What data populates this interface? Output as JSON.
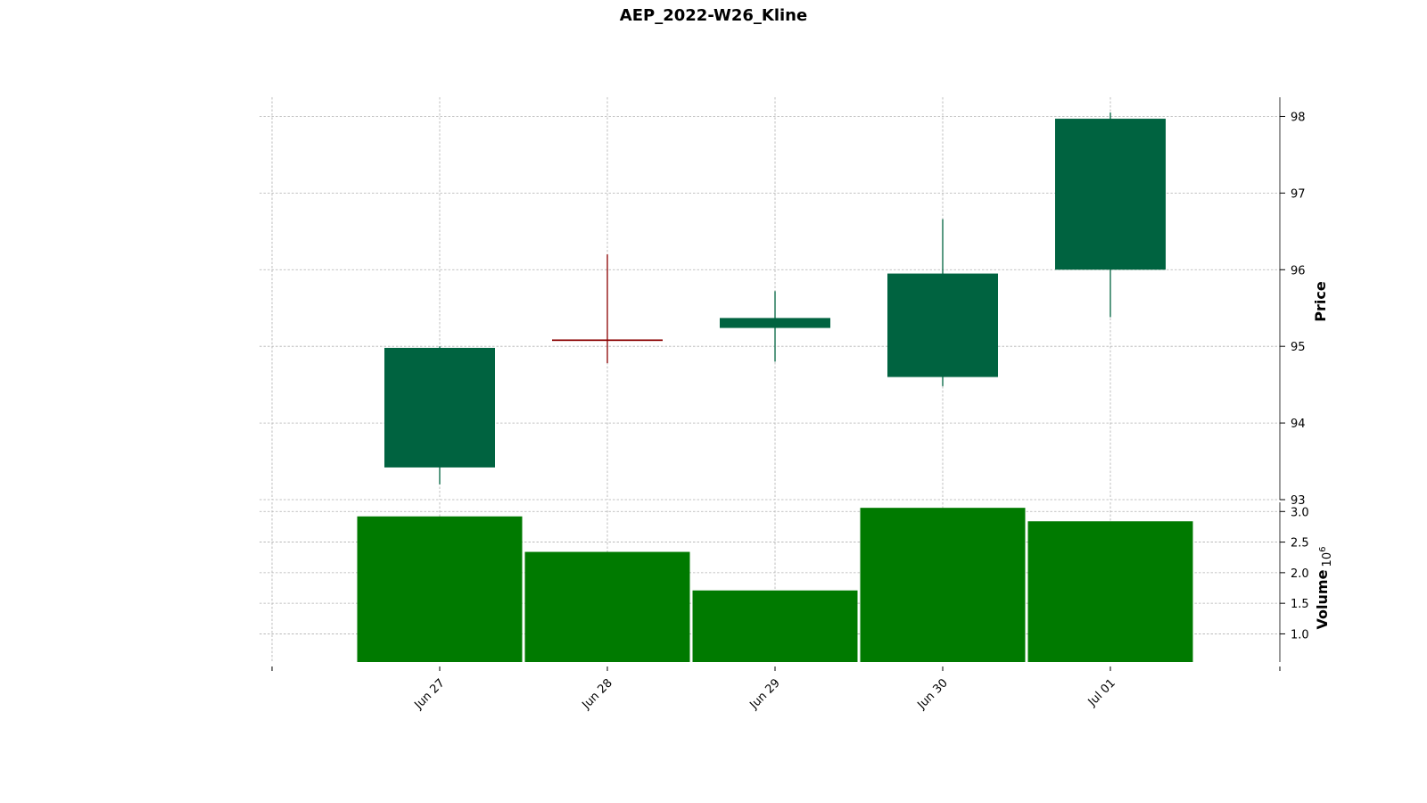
{
  "chart_data": {
    "type": "candlestick",
    "title": "AEP_2022-W26_Kline",
    "categories": [
      "Jun 27",
      "Jun 28",
      "Jun 29",
      "Jun 30",
      "Jul 01"
    ],
    "ohlc": [
      {
        "date": "Jun 27",
        "open": 93.42,
        "high": 95.0,
        "low": 93.2,
        "close": 94.98
      },
      {
        "date": "Jun 28",
        "open": 95.09,
        "high": 96.2,
        "low": 94.78,
        "close": 95.07
      },
      {
        "date": "Jun 29",
        "open": 95.24,
        "high": 95.72,
        "low": 94.8,
        "close": 95.37
      },
      {
        "date": "Jun 30",
        "open": 94.6,
        "high": 96.66,
        "low": 94.48,
        "close": 95.95
      },
      {
        "date": "Jul 01",
        "open": 96.0,
        "high": 98.05,
        "low": 95.38,
        "close": 97.97
      }
    ],
    "volume": [
      2.92,
      2.34,
      1.71,
      3.06,
      2.84
    ],
    "price_axis": {
      "label": "Price",
      "ylim": [
        93,
        98.25
      ],
      "ticks": [
        "93",
        "94",
        "95",
        "96",
        "97",
        "98"
      ],
      "position": "right"
    },
    "volume_axis": {
      "label": "Volume",
      "multiplier": "10",
      "exponent": "6",
      "ylim": [
        0.54,
        3.15
      ],
      "ticks": [
        "1.0",
        "1.5",
        "2.0",
        "2.5",
        "3.0"
      ],
      "position": "right"
    },
    "grid": true,
    "colors": {
      "up": "#006340",
      "down": "#8b0000",
      "volume": "#007a00"
    }
  }
}
